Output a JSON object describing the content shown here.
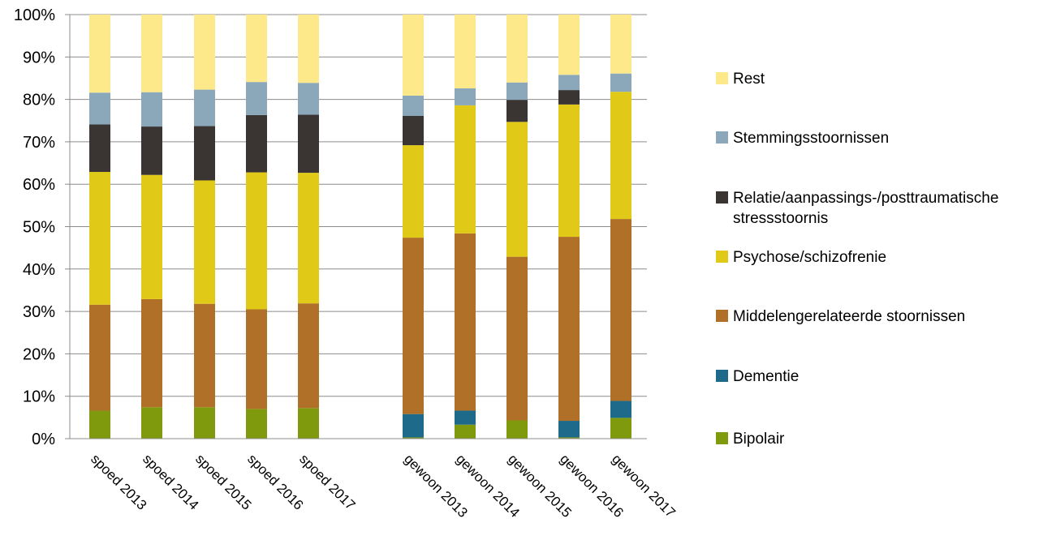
{
  "chart_data": {
    "type": "bar",
    "stacked": true,
    "normalized_percent": true,
    "categories": [
      "spoed 2013",
      "spoed 2014",
      "spoed 2015",
      "spoed 2016",
      "spoed 2017",
      "gewoon 2013",
      "gewoon 2014",
      "gewoon 2015",
      "gewoon 2016",
      "gewoon 2017"
    ],
    "ylim": [
      0,
      100
    ],
    "yticks": [
      "0%",
      "10%",
      "20%",
      "30%",
      "40%",
      "50%",
      "60%",
      "70%",
      "80%",
      "90%",
      "100%"
    ],
    "grid": true,
    "legend_position": "right",
    "series": [
      {
        "name": "Bipolair",
        "color": "#7f9a0d",
        "values": [
          6.6,
          7.4,
          7.4,
          7.0,
          7.2,
          0.3,
          3.3,
          4.3,
          0.3,
          4.9
        ]
      },
      {
        "name": "Dementie",
        "color": "#1e6a8a",
        "values": [
          0.0,
          0.0,
          0.0,
          0.0,
          0.0,
          5.5,
          3.3,
          0.0,
          3.9,
          4.0
        ]
      },
      {
        "name": "Middelengerelateerde stoornissen",
        "color": "#b07028",
        "values": [
          25.0,
          25.5,
          24.4,
          23.5,
          24.7,
          41.6,
          41.8,
          38.6,
          43.4,
          42.9
        ]
      },
      {
        "name": "Psychose/schizofrenie",
        "color": "#e1c918",
        "values": [
          31.3,
          29.3,
          29.1,
          32.3,
          30.8,
          21.8,
          30.2,
          31.8,
          31.2,
          30.0
        ]
      },
      {
        "name": "Relatie/aanpassings-/posttraumatische stressstoornis",
        "color": "#3a3433",
        "values": [
          11.2,
          11.4,
          12.8,
          13.5,
          13.7,
          6.9,
          0.0,
          5.2,
          3.4,
          0.0
        ]
      },
      {
        "name": "Stemmingsstoornissen",
        "color": "#8ba8bb",
        "values": [
          7.5,
          8.1,
          8.6,
          7.8,
          7.5,
          4.8,
          4.0,
          4.1,
          3.6,
          4.3
        ]
      },
      {
        "name": "Rest",
        "color": "#fde88a",
        "values": [
          18.4,
          18.3,
          17.7,
          15.9,
          16.1,
          19.1,
          17.4,
          16.0,
          14.2,
          13.9
        ]
      }
    ]
  }
}
